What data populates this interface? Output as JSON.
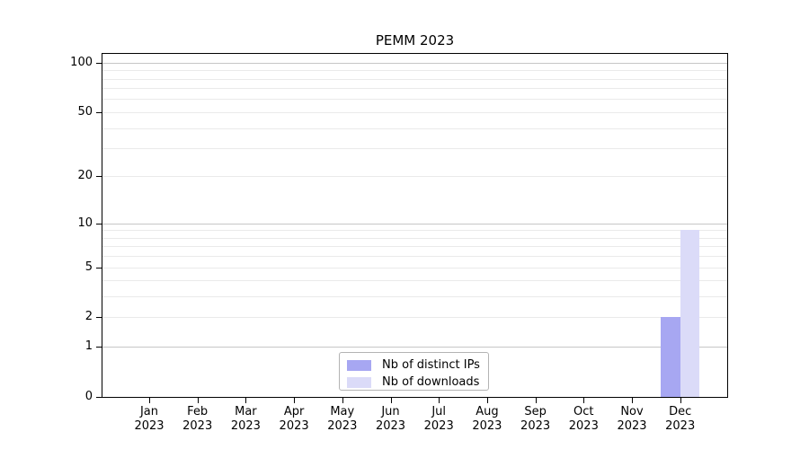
{
  "window": {
    "background": "#ffffff"
  },
  "chart_data": {
    "type": "bar",
    "title": "PEMM 2023",
    "categories": [
      "Jan 2023",
      "Feb 2023",
      "Mar 2023",
      "Apr 2023",
      "May 2023",
      "Jun 2023",
      "Jul 2023",
      "Aug 2023",
      "Sep 2023",
      "Oct 2023",
      "Nov 2023",
      "Dec 2023"
    ],
    "series": [
      {
        "name": "Nb of distinct IPs",
        "color": "#a7a7f2",
        "values": [
          0,
          0,
          0,
          0,
          0,
          0,
          0,
          0,
          0,
          0,
          0,
          2
        ]
      },
      {
        "name": "Nb of downloads",
        "color": "#dbdbf8",
        "values": [
          0,
          0,
          0,
          0,
          0,
          0,
          0,
          0,
          0,
          0,
          0,
          9
        ]
      }
    ],
    "xlabel": "",
    "ylabel": "",
    "y_axis": {
      "scale": "log1p",
      "labeled_ticks": [
        0,
        1,
        2,
        5,
        10,
        20,
        50,
        100
      ],
      "major_gridlines": [
        1,
        10,
        100
      ],
      "minor_gridlines": [
        2,
        3,
        4,
        5,
        6,
        7,
        8,
        9,
        20,
        30,
        40,
        50,
        60,
        70,
        80,
        90
      ],
      "ylim": [
        0,
        113
      ]
    },
    "grid": "horizontal",
    "legend": {
      "position": "bottom-center",
      "entries": [
        "Nb of distinct IPs",
        "Nb of downloads"
      ]
    },
    "colors": {
      "major_grid": "#c6c6c6",
      "minor_grid": "#eaeaea",
      "axis": "#000000",
      "text": "#000000",
      "background": "#ffffff"
    }
  }
}
